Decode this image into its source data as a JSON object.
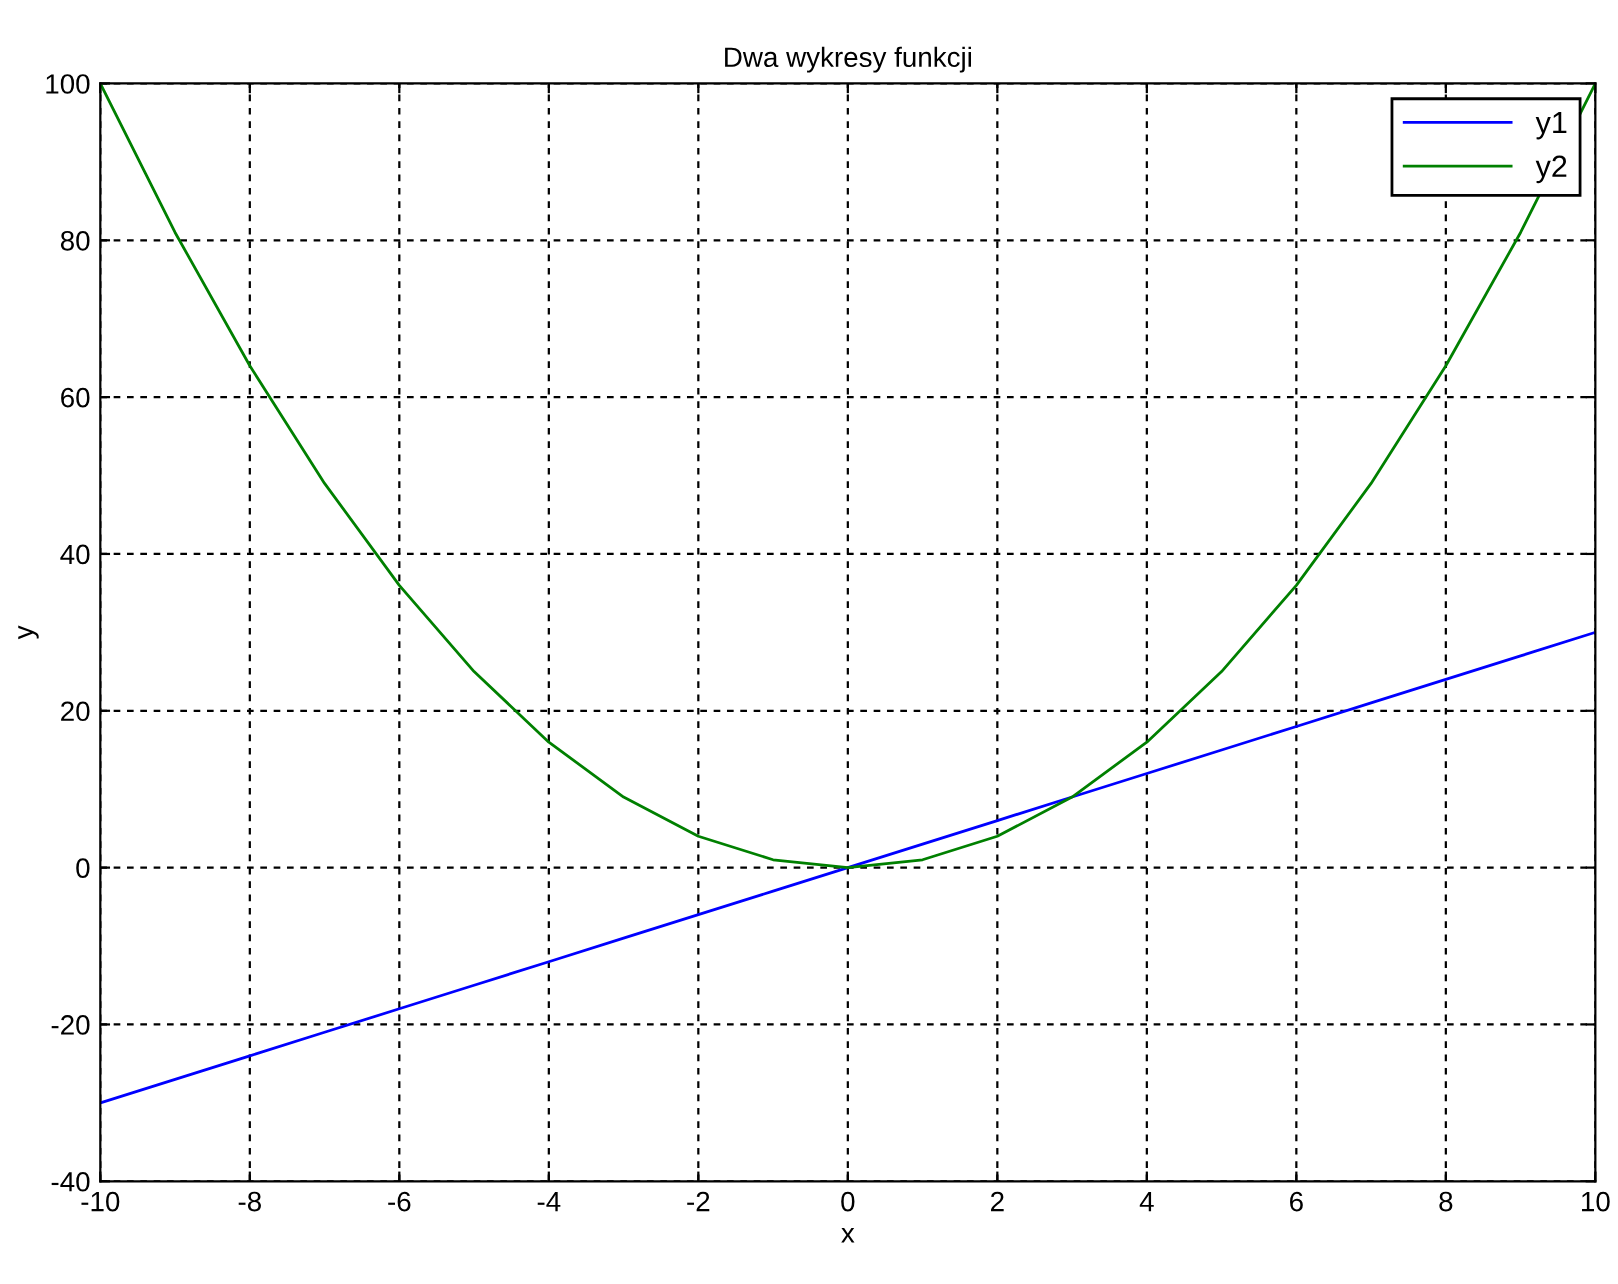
{
  "chart_data": {
    "type": "line",
    "title": "Dwa wykresy funkcji",
    "xlabel": "x",
    "ylabel": "y",
    "x": [
      -10,
      -9,
      -8,
      -7,
      -6,
      -5,
      -4,
      -3,
      -2,
      -1,
      0,
      1,
      2,
      3,
      4,
      5,
      6,
      7,
      8,
      9,
      10
    ],
    "series": [
      {
        "name": "y1",
        "color": "#0000ff",
        "values": [
          -30,
          -27,
          -24,
          -21,
          -18,
          -15,
          -12,
          -9,
          -6,
          -3,
          0,
          3,
          6,
          9,
          12,
          15,
          18,
          21,
          24,
          27,
          30
        ]
      },
      {
        "name": "y2",
        "color": "#008000",
        "values": [
          100,
          81,
          64,
          49,
          36,
          25,
          16,
          9,
          4,
          1,
          0,
          1,
          4,
          9,
          16,
          25,
          36,
          49,
          64,
          81,
          100
        ]
      }
    ],
    "xlim": [
      -10,
      10
    ],
    "ylim": [
      -40,
      100
    ],
    "xticks": [
      -10,
      -8,
      -6,
      -4,
      -2,
      0,
      2,
      4,
      6,
      8,
      10
    ],
    "yticks": [
      -40,
      -20,
      0,
      20,
      40,
      60,
      80,
      100
    ],
    "grid": true,
    "legend": "top right",
    "line_style": "solid",
    "marker": "none"
  }
}
